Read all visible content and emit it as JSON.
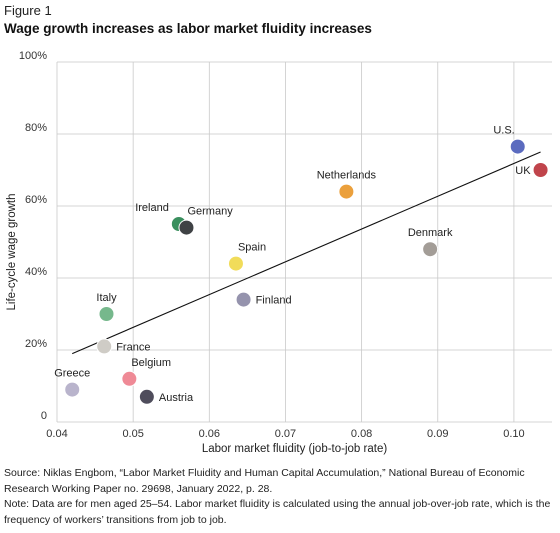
{
  "figure_label": "Figure 1",
  "chart_data": {
    "type": "scatter",
    "title": "Wage growth increases as labor market fluidity increases",
    "xlabel": "Labor market fluidity (job-to-job rate)",
    "ylabel": "Life-cycle wage growth",
    "xlim": [
      0.04,
      0.105
    ],
    "ylim": [
      0,
      1.0
    ],
    "xticks": [
      0.04,
      0.05,
      0.06,
      0.07,
      0.08,
      0.09,
      0.1
    ],
    "xtick_labels": [
      "0.04",
      "0.05",
      "0.06",
      "0.07",
      "0.08",
      "0.09",
      "0.10"
    ],
    "yticks": [
      0,
      0.2,
      0.4,
      0.6,
      0.8,
      1.0
    ],
    "ytick_labels": [
      "0",
      "20%",
      "40%",
      "60%",
      "80%",
      "100%"
    ],
    "grid": true,
    "points": [
      {
        "label": "U.S.",
        "x": 0.1005,
        "y": 0.765,
        "color": "#5b6bbf",
        "label_pos": "above-left"
      },
      {
        "label": "UK",
        "x": 0.1035,
        "y": 0.7,
        "color": "#c0444b",
        "label_pos": "left"
      },
      {
        "label": "Netherlands",
        "x": 0.078,
        "y": 0.64,
        "color": "#eba03c",
        "label_pos": "above"
      },
      {
        "label": "Denmark",
        "x": 0.089,
        "y": 0.48,
        "color": "#a39d97",
        "label_pos": "above"
      },
      {
        "label": "Ireland",
        "x": 0.056,
        "y": 0.55,
        "color": "#3a8f5e",
        "label_pos": "above-left"
      },
      {
        "label": "Germany",
        "x": 0.057,
        "y": 0.54,
        "color": "#3f4245",
        "label_pos": "above-right"
      },
      {
        "label": "Spain",
        "x": 0.0635,
        "y": 0.44,
        "color": "#f1dc5a",
        "label_pos": "above-right"
      },
      {
        "label": "Finland",
        "x": 0.0645,
        "y": 0.34,
        "color": "#9593ad",
        "label_pos": "right"
      },
      {
        "label": "Italy",
        "x": 0.0465,
        "y": 0.3,
        "color": "#76b88c",
        "label_pos": "above"
      },
      {
        "label": "France",
        "x": 0.0462,
        "y": 0.21,
        "color": "#cfccc6",
        "label_pos": "right"
      },
      {
        "label": "Belgium",
        "x": 0.0495,
        "y": 0.12,
        "color": "#ef8a96",
        "label_pos": "above-right"
      },
      {
        "label": "Greece",
        "x": 0.042,
        "y": 0.09,
        "color": "#b9b4cc",
        "label_pos": "above"
      },
      {
        "label": "Austria",
        "x": 0.0518,
        "y": 0.07,
        "color": "#4f4d5c",
        "label_pos": "right"
      }
    ],
    "trendline": {
      "x": [
        0.042,
        0.1035
      ],
      "y": [
        0.19,
        0.75
      ]
    }
  },
  "notes": {
    "source": "Source: Niklas Engbom, “Labor Market Fluidity and Human Capital Accumulation,” National Bureau of Economic Research Working Paper no. 29698, January 2022, p. 28.",
    "note": "Note: Data are for men aged 25–54. Labor market fluidity is calculated using the annual job-over-job rate, which is the frequency of workers’ transitions from job to job."
  }
}
